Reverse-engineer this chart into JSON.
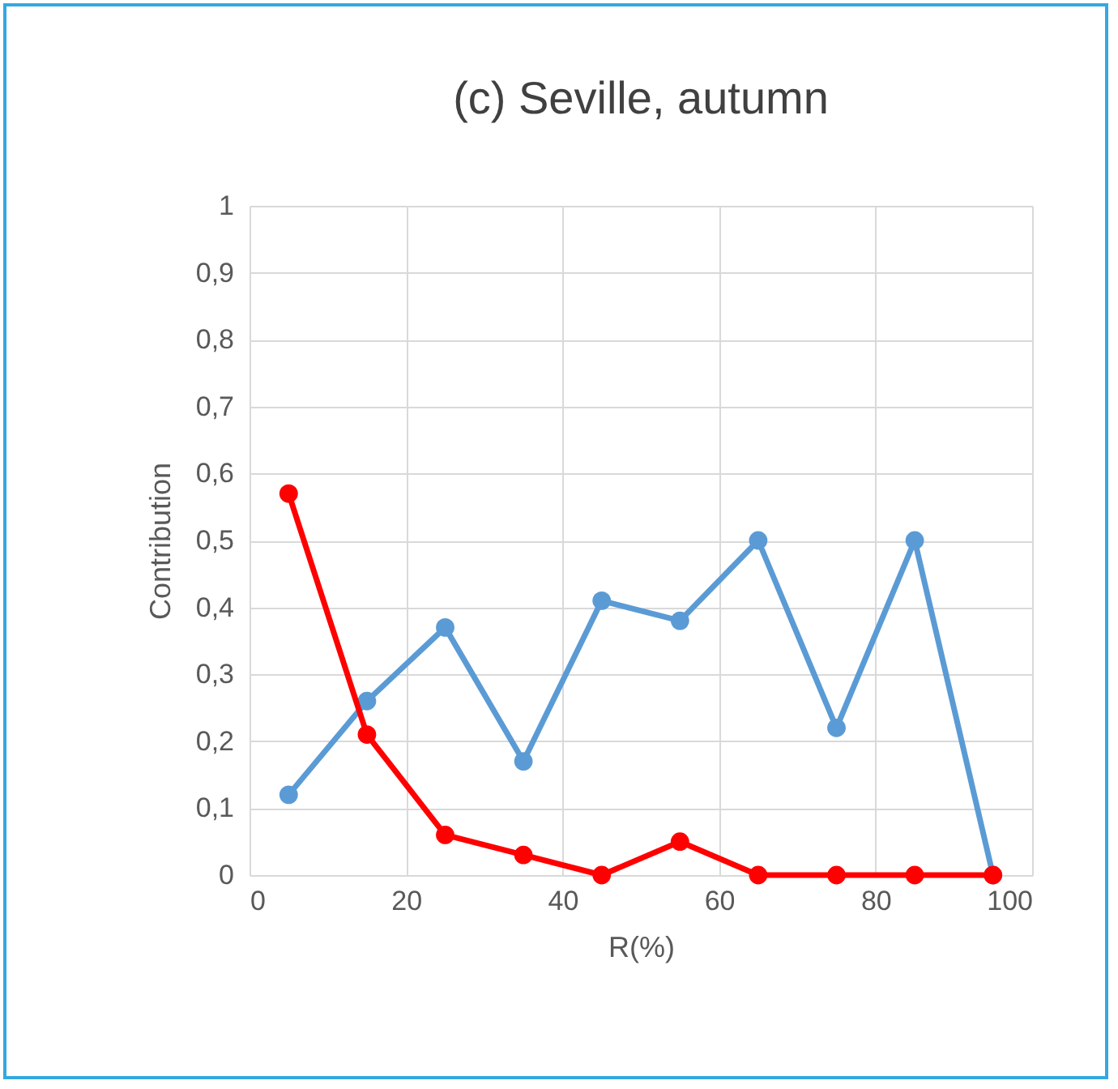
{
  "chart_data": {
    "type": "line",
    "title": "(c) Seville, autumn",
    "xlabel": "R(%)",
    "ylabel": "Contribution",
    "x": [
      5,
      15,
      25,
      35,
      45,
      55,
      65,
      75,
      85,
      95
    ],
    "series": [
      {
        "color": "#5b9bd5",
        "values": [
          0.12,
          0.26,
          0.37,
          0.17,
          0.41,
          0.38,
          0.5,
          0.22,
          0.5,
          0
        ]
      },
      {
        "color": "#ff0000",
        "values": [
          0.57,
          0.21,
          0.06,
          0.03,
          0,
          0.05,
          0,
          0,
          0,
          0
        ]
      }
    ],
    "xlim": [
      0,
      100
    ],
    "xticks": [
      0,
      20,
      40,
      60,
      80,
      100
    ],
    "ylim": [
      0,
      1
    ],
    "yticks": [
      0,
      {
        "value": 0.1,
        "label": "0,1"
      },
      {
        "value": 0.2,
        "label": "0,2"
      },
      {
        "value": 0.3,
        "label": "0,3"
      },
      {
        "value": 0.4,
        "label": "0,4"
      },
      {
        "value": 0.5,
        "label": "0,5"
      },
      {
        "value": 0.6,
        "label": "0,6"
      },
      {
        "value": 0.7,
        "label": "0,7"
      },
      {
        "value": 0.8,
        "label": "0,8"
      },
      {
        "value": 0.9,
        "label": "0,9"
      },
      1
    ],
    "grid": true,
    "marker": "circle",
    "line_style": "solid"
  }
}
